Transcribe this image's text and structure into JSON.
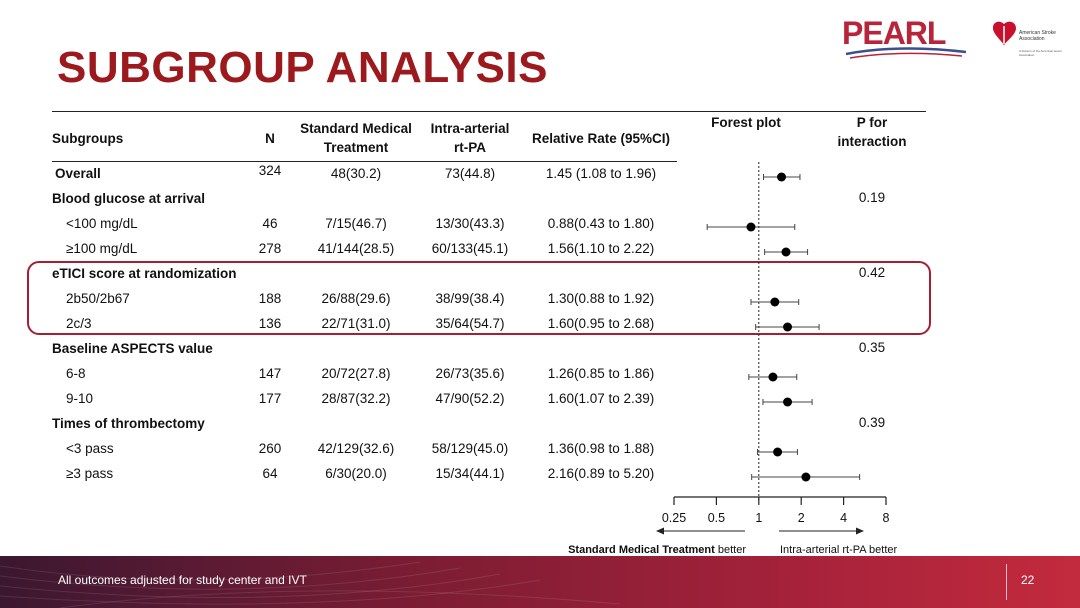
{
  "title": "SUBGROUP ANALYSIS",
  "logo": {
    "pearl": "PEARL",
    "aha_name": "American Stroke Association",
    "aha_tagline": "A division of the American Heart Association"
  },
  "table": {
    "headers": {
      "subgroups": "Subgroups",
      "n": "N",
      "smt_line1": "Standard Medical",
      "smt_line2": "Treatment",
      "ia_line1": "Intra-arterial",
      "ia_line2": "rt-PA",
      "rr": "Relative Rate (95%CI)",
      "forest": "Forest plot",
      "p_line1": "P for",
      "p_line2": "interaction"
    },
    "rows": [
      {
        "label": "Overall",
        "bold": true,
        "indent": false,
        "n": "324",
        "smt": "48(30.2)",
        "ia": "73(44.8)",
        "rr": "1.45 (1.08 to 1.96)",
        "p": ""
      },
      {
        "label": "Blood glucose at arrival",
        "bold": true,
        "indent": false,
        "n": "",
        "smt": "",
        "ia": "",
        "rr": "",
        "p": "0.19"
      },
      {
        "label": "<100 mg/dL",
        "bold": false,
        "indent": true,
        "n": "46",
        "smt": "7/15(46.7)",
        "ia": "13/30(43.3)",
        "rr": "0.88(0.43 to 1.80)",
        "p": ""
      },
      {
        "label": "≥100 mg/dL",
        "bold": false,
        "indent": true,
        "n": "278",
        "smt": "41/144(28.5)",
        "ia": "60/133(45.1)",
        "rr": "1.56(1.10 to 2.22)",
        "p": ""
      },
      {
        "label": "eTICI score at randomization",
        "bold": true,
        "indent": false,
        "n": "",
        "smt": "",
        "ia": "",
        "rr": "",
        "p": "0.42"
      },
      {
        "label": "2b50/2b67",
        "bold": false,
        "indent": true,
        "n": "188",
        "smt": "26/88(29.6)",
        "ia": "38/99(38.4)",
        "rr": "1.30(0.88 to 1.92)",
        "p": ""
      },
      {
        "label": "2c/3",
        "bold": false,
        "indent": true,
        "n": "136",
        "smt": "22/71(31.0)",
        "ia": "35/64(54.7)",
        "rr": "1.60(0.95 to 2.68)",
        "p": ""
      },
      {
        "label": "Baseline ASPECTS value",
        "bold": true,
        "indent": false,
        "n": "",
        "smt": "",
        "ia": "",
        "rr": "",
        "p": "0.35"
      },
      {
        "label": "6-8",
        "bold": false,
        "indent": true,
        "n": "147",
        "smt": "20/72(27.8)",
        "ia": "26/73(35.6)",
        "rr": "1.26(0.85 to 1.86)",
        "p": ""
      },
      {
        "label": "9-10",
        "bold": false,
        "indent": true,
        "n": "177",
        "smt": "28/87(32.2)",
        "ia": "47/90(52.2)",
        "rr": "1.60(1.07 to 2.39)",
        "p": ""
      },
      {
        "label": "Times of thrombectomy",
        "bold": true,
        "indent": false,
        "n": "",
        "smt": "",
        "ia": "",
        "rr": "",
        "p": "0.39"
      },
      {
        "label": "<3 pass",
        "bold": false,
        "indent": true,
        "n": "260",
        "smt": "42/129(32.6)",
        "ia": "58/129(45.0)",
        "rr": "1.36(0.98 to 1.88)",
        "p": ""
      },
      {
        "label": "≥3 pass",
        "bold": false,
        "indent": true,
        "n": "64",
        "smt": "6/30(20.0)",
        "ia": "15/34(44.1)",
        "rr": "2.16(0.89 to 5.20)",
        "p": ""
      }
    ]
  },
  "chart_data": {
    "type": "scatter",
    "x_scale": "log2",
    "xlim": [
      0.25,
      8
    ],
    "x_ticks": [
      0.25,
      0.5,
      1,
      2,
      4,
      8
    ],
    "x_tick_labels": [
      "0.25",
      "0.5",
      "1",
      "2",
      "4",
      "8"
    ],
    "reference_line": 1,
    "points": [
      {
        "row": 0,
        "est": 1.45,
        "lo": 1.08,
        "hi": 1.96
      },
      {
        "row": 2,
        "est": 0.88,
        "lo": 0.43,
        "hi": 1.8
      },
      {
        "row": 3,
        "est": 1.56,
        "lo": 1.1,
        "hi": 2.22
      },
      {
        "row": 5,
        "est": 1.3,
        "lo": 0.88,
        "hi": 1.92
      },
      {
        "row": 6,
        "est": 1.6,
        "lo": 0.95,
        "hi": 2.68
      },
      {
        "row": 8,
        "est": 1.26,
        "lo": 0.85,
        "hi": 1.86
      },
      {
        "row": 9,
        "est": 1.6,
        "lo": 1.07,
        "hi": 2.39
      },
      {
        "row": 11,
        "est": 1.36,
        "lo": 0.98,
        "hi": 1.88
      },
      {
        "row": 12,
        "est": 2.16,
        "lo": 0.89,
        "hi": 5.2
      }
    ],
    "left_label_bold": "Standard Medical Treatment",
    "left_label_rest": " better",
    "right_label": "Intra-arterial rt-PA better"
  },
  "footer": {
    "note": "All outcomes adjusted for study center and IVT",
    "page": "22"
  },
  "colors": {
    "title": "#9c1a1e",
    "highlight_border": "#a31f34"
  }
}
